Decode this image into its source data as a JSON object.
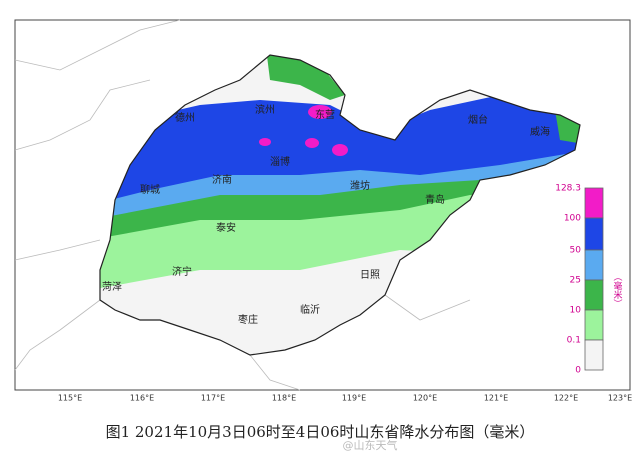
{
  "caption": "图1 2021年10月3日06时至4日06时山东省降水分布图（毫米）",
  "watermark": "@山东天气",
  "longitude_labels": [
    "115°E",
    "116°E",
    "117°E",
    "118°E",
    "119°E",
    "120°E",
    "121°E",
    "122°E",
    "123°E"
  ],
  "cities": [
    "德州",
    "滨州",
    "东营",
    "烟台",
    "威海",
    "淄博",
    "聊城",
    "济南",
    "潍坊",
    "青岛",
    "泰安",
    "济宁",
    "菏泽",
    "日照",
    "临沂",
    "枣庄"
  ],
  "legend": {
    "levels": [
      "128.3",
      "100",
      "50",
      "25",
      "10",
      "0.1",
      "0"
    ],
    "unit": "（毫米）"
  }
}
